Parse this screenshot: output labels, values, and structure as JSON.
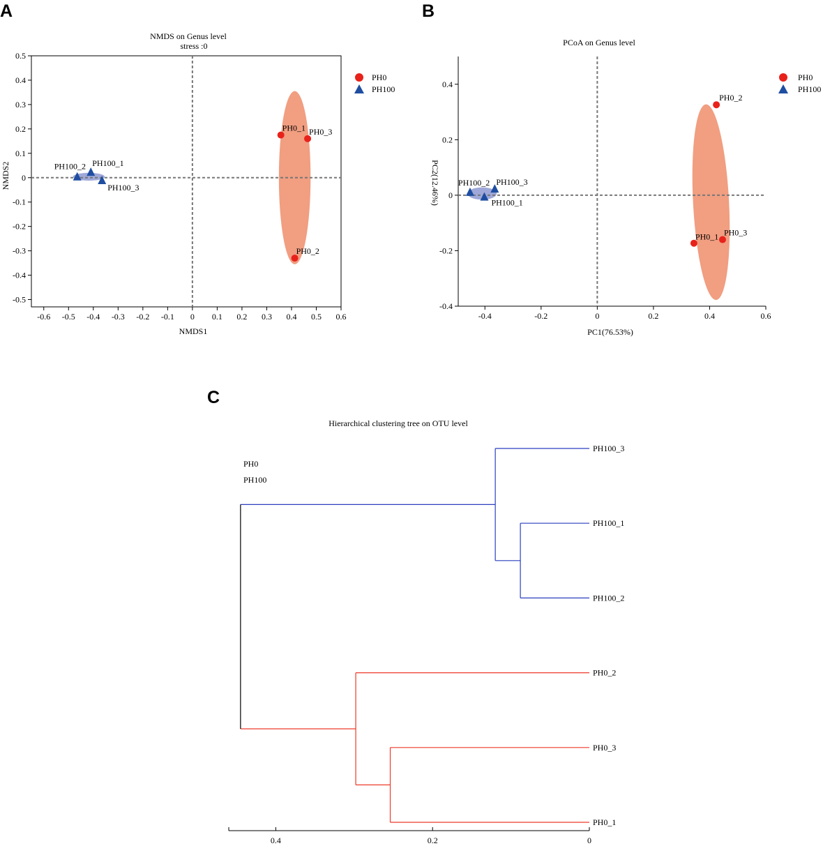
{
  "panels": {
    "a_letter": "A",
    "b_letter": "B",
    "c_letter": "C"
  },
  "colors": {
    "ph0": "#e8221b",
    "ph100": "#1f4ea1",
    "ph0_ellipse": "#f0997a",
    "ph100_ellipse": "#9aa3d6",
    "tree_ph0": "#ee3a2a",
    "tree_ph100": "#2a3fbf",
    "axis": "#000000",
    "refline": "#777777"
  },
  "chart_data": [
    {
      "type": "scatter",
      "id": "nmds",
      "title": "NMDS on Genus level",
      "subtitle": "stress :0",
      "xlabel": "NMDS1",
      "ylabel": "NMDS2",
      "xlim": [
        -0.65,
        0.6
      ],
      "ylim": [
        -0.53,
        0.5
      ],
      "xticks": [
        -0.6,
        -0.5,
        -0.4,
        -0.3,
        -0.2,
        -0.1,
        0,
        0.1,
        0.2,
        0.3,
        0.4,
        0.5,
        0.6
      ],
      "xtick_labels": [
        "-0.6",
        "-0.5",
        "-0.4",
        "-0.3",
        "-0.2",
        "-0.1",
        "0",
        "0.1",
        "0.2",
        "0.3",
        "0.4",
        "0.5",
        "0.6"
      ],
      "yticks": [
        0.5,
        0.4,
        0.3,
        0.2,
        0.1,
        0,
        -0.1,
        -0.2,
        -0.3,
        -0.4,
        -0.5
      ],
      "ytick_labels": [
        "0.5",
        "0.4",
        "0.3",
        "0.2",
        "0.1",
        "0",
        "-0.1",
        "-0.2",
        "-0.3",
        "-0.4",
        "-0.5"
      ],
      "legend_position": "top-right",
      "series": [
        {
          "name": "PH0",
          "marker": "circle",
          "points": [
            {
              "label": "PH0_1",
              "x": 0.357,
              "y": 0.175
            },
            {
              "label": "PH0_3",
              "x": 0.465,
              "y": 0.16
            },
            {
              "label": "PH0_2",
              "x": 0.413,
              "y": -0.33
            }
          ],
          "ellipse": {
            "cx": 0.413,
            "cy": 0.0,
            "rx": 0.064,
            "ry": 0.355,
            "angle": 0
          }
        },
        {
          "name": "PH100",
          "marker": "triangle",
          "points": [
            {
              "label": "PH100_2",
              "x": -0.465,
              "y": 0.003
            },
            {
              "label": "PH100_1",
              "x": -0.41,
              "y": 0.022
            },
            {
              "label": "PH100_3",
              "x": -0.365,
              "y": -0.012
            }
          ],
          "ellipse": {
            "cx": -0.418,
            "cy": 0.004,
            "rx": 0.064,
            "ry": 0.016,
            "angle": 0
          }
        }
      ]
    },
    {
      "type": "scatter",
      "id": "pcoa",
      "title": "PCoA on Genus level",
      "xlabel": "PC1(76.53%)",
      "ylabel": "PC2(12.46%)",
      "xlim": [
        -0.495,
        0.6
      ],
      "ylim": [
        -0.4,
        0.5
      ],
      "xticks": [
        -0.4,
        -0.2,
        0,
        0.2,
        0.4,
        0.6
      ],
      "xtick_labels": [
        "-0.4",
        "-0.2",
        "0",
        "0.2",
        "0.4",
        "0.6"
      ],
      "yticks": [
        0.4,
        0.2,
        0,
        -0.2,
        -0.4
      ],
      "ytick_labels": [
        "0.4",
        "0.2",
        "0",
        "-0.2",
        "-0.4"
      ],
      "legend_position": "top-right",
      "series": [
        {
          "name": "PH0",
          "marker": "circle",
          "points": [
            {
              "label": "PH0_2",
              "x": 0.424,
              "y": 0.326
            },
            {
              "label": "PH0_1",
              "x": 0.344,
              "y": -0.173
            },
            {
              "label": "PH0_3",
              "x": 0.446,
              "y": -0.16
            }
          ],
          "ellipse": {
            "cx": 0.405,
            "cy": -0.025,
            "rx": 0.064,
            "ry": 0.353,
            "angle": -3
          }
        },
        {
          "name": "PH100",
          "marker": "triangle",
          "points": [
            {
              "label": "PH100_2",
              "x": -0.453,
              "y": 0.01
            },
            {
              "label": "PH100_3",
              "x": -0.365,
              "y": 0.022
            },
            {
              "label": "PH100_1",
              "x": -0.402,
              "y": -0.007
            }
          ],
          "ellipse": {
            "cx": -0.41,
            "cy": 0.006,
            "rx": 0.052,
            "ry": 0.022,
            "angle": 0
          }
        }
      ]
    },
    {
      "type": "dendrogram",
      "id": "tree",
      "title": "Hierarchical clustering tree on OTU level",
      "legend": [
        "PH0",
        "PH100"
      ],
      "axis_range": [
        0.46,
        0
      ],
      "axis_ticks": [
        0.4,
        0.2,
        0
      ],
      "axis_tick_labels": [
        "0.4",
        "0.2",
        "0"
      ],
      "leaves": [
        "PH100_3",
        "PH100_1",
        "PH100_2",
        "PH0_2",
        "PH0_3",
        "PH0_1"
      ],
      "leaf_groups": [
        "PH100",
        "PH100",
        "PH100",
        "PH0",
        "PH0",
        "PH0"
      ],
      "merges": [
        {
          "a": "PH100_1",
          "b": "PH100_2",
          "height": 0.088,
          "group": "PH100"
        },
        {
          "a": "PH100_3",
          "b": "PH100_1+PH100_2",
          "height": 0.12,
          "group": "PH100"
        },
        {
          "a": "PH0_3",
          "b": "PH0_1",
          "height": 0.254,
          "group": "PH0"
        },
        {
          "a": "PH0_2",
          "b": "PH0_3+PH0_1",
          "height": 0.298,
          "group": "PH0"
        },
        {
          "a": "PH100",
          "b": "PH0",
          "height": 0.445,
          "group": "root"
        }
      ]
    }
  ]
}
